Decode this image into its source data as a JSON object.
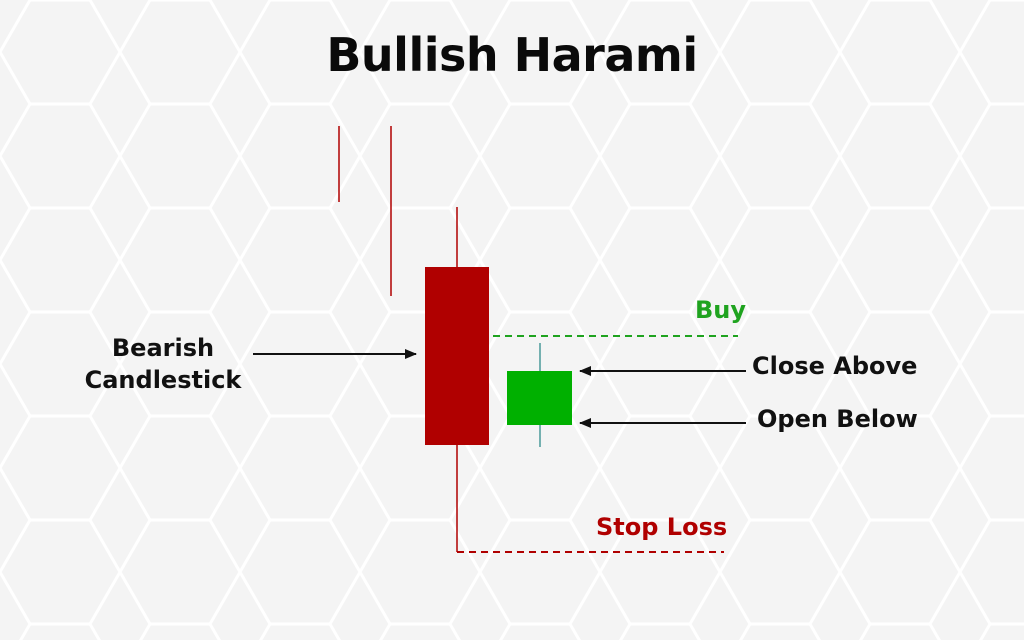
{
  "title": "Bullish Harami",
  "labels": {
    "bearish_line1": "Bearish",
    "bearish_line2": "Candlestick",
    "close_above": "Close Above",
    "open_below": "Open Below",
    "buy": "Buy",
    "stop_loss": "Stop Loss"
  },
  "colors": {
    "bearish": "#b00000",
    "bullish": "#00b000",
    "buy": "#1fa31f",
    "stop_loss": "#b00000",
    "text": "#111111",
    "background": "#f4f4f4"
  }
}
